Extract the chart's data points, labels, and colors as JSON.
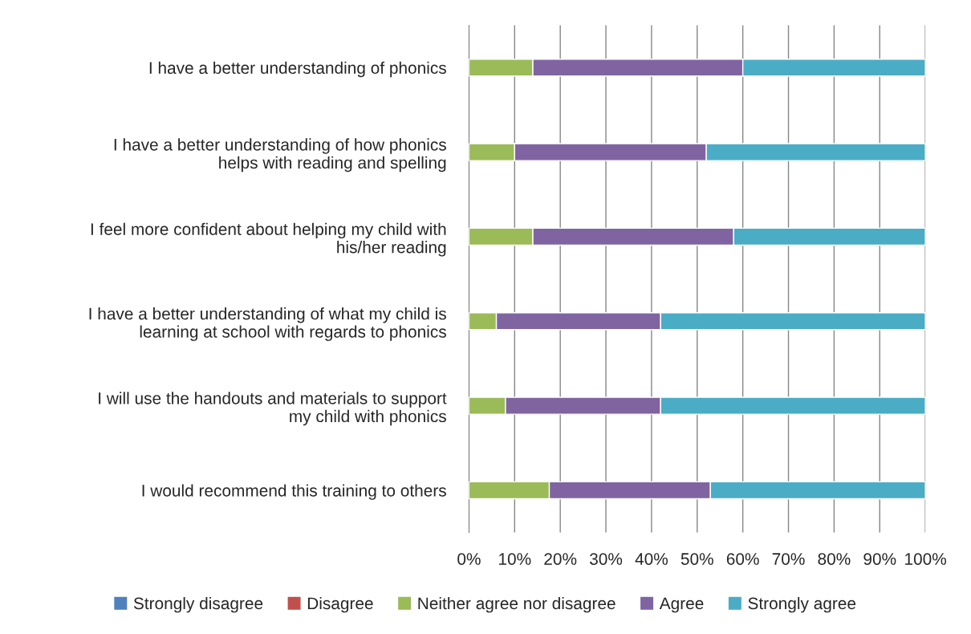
{
  "chart_data": {
    "type": "bar",
    "orientation": "horizontal",
    "stacked": true,
    "categories": [
      "I have a better understanding of phonics",
      "I have a better understanding of how phonics\nhelps with reading and spelling",
      "I feel more confident about helping my child with\nhis/her reading",
      "I have a better understanding of what my child is\nlearning at school with regards to phonics",
      "I will use the handouts and materials to support\nmy child with phonics",
      "I would recommend this training to others"
    ],
    "series": [
      {
        "name": "Strongly disagree",
        "color": "#4f81bd",
        "values": [
          0,
          0,
          0,
          0,
          0,
          0
        ]
      },
      {
        "name": "Disagree",
        "color": "#c0504d",
        "values": [
          0,
          0,
          0,
          0,
          0,
          0
        ]
      },
      {
        "name": "Neither agree nor disagree",
        "color": "#9bbb59",
        "values": [
          14,
          10,
          14,
          6,
          8,
          17.6
        ]
      },
      {
        "name": "Agree",
        "color": "#8064a2",
        "values": [
          46,
          42,
          44,
          36,
          34,
          35.3
        ]
      },
      {
        "name": "Strongly agree",
        "color": "#4bacc6",
        "values": [
          40,
          48,
          42,
          58,
          58,
          47.1
        ]
      }
    ],
    "xlim": [
      0,
      100
    ],
    "xticks": [
      {
        "value": 0,
        "label": "0%"
      },
      {
        "value": 10,
        "label": "10%"
      },
      {
        "value": 20,
        "label": "20%"
      },
      {
        "value": 30,
        "label": "30%"
      },
      {
        "value": 40,
        "label": "40%"
      },
      {
        "value": 50,
        "label": "50%"
      },
      {
        "value": 60,
        "label": "60%"
      },
      {
        "value": 70,
        "label": "70%"
      },
      {
        "value": 80,
        "label": "80%"
      },
      {
        "value": 90,
        "label": "90%"
      },
      {
        "value": 100,
        "label": "100%"
      }
    ],
    "grid": "x",
    "legend": "bottom"
  }
}
